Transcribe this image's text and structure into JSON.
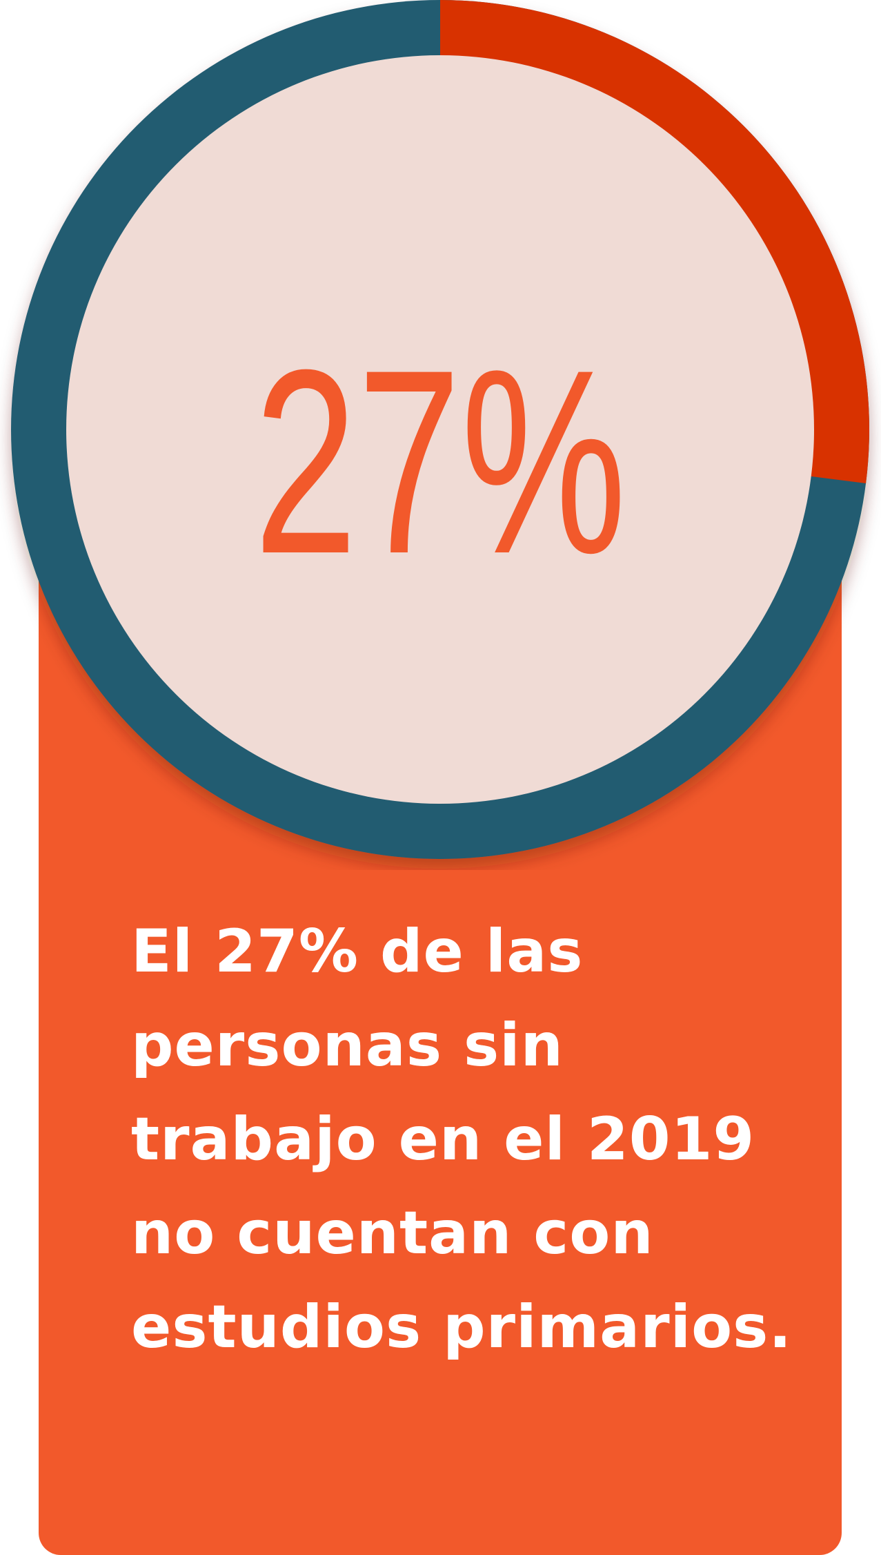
{
  "colors": {
    "card": "#f2592b",
    "ring_base": "#215c71",
    "ring_highlight": "#d83200",
    "center_fill": "#f0dbd5",
    "big_number": "#f2592b",
    "caption_text": "#ffffff"
  },
  "chart_data": {
    "type": "pie",
    "value_percent": 27,
    "center_label": "27%",
    "slices": [
      {
        "label": "",
        "value": 27,
        "color": "#d83200"
      },
      {
        "label": "",
        "value": 73,
        "color": "#215c71"
      }
    ]
  },
  "caption": "El 27% de las personas sin trabajo en el 2019 no cuentan con estudios primarios."
}
